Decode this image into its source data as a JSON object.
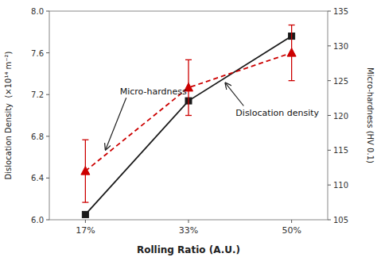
{
  "chart_data": {
    "type": "line",
    "x_label": "Rolling Ratio (A.U.)",
    "y_label": "Dislocation Density  (×10¹⁴ m⁻²)",
    "y2_label": "Micro-hardness (HV 0.1)",
    "categories": [
      "17%",
      "33%",
      "50%"
    ],
    "series": [
      {
        "color": "#1a1a1a",
        "marker": "square",
        "line_style": "solid",
        "values": [
          6.05,
          7.14,
          7.76
        ]
      },
      {
        "color": "#cc0000",
        "marker": "triangle",
        "line_style": "dashed",
        "axis": "y2",
        "values": [
          112.0,
          124.0,
          129.0
        ],
        "errors": [
          4.5,
          4.0,
          4.0
        ]
      }
    ],
    "ylim": [
      6.0,
      8.0
    ],
    "yticks": [
      {
        "value": 6.0,
        "label": "6.0"
      },
      6.4,
      6.8,
      7.2,
      7.6,
      {
        "value": 8.0,
        "label": "8.0"
      }
    ],
    "y2lim": [
      105,
      135
    ],
    "y2ticks": [
      105,
      110,
      115,
      120,
      125,
      130,
      135
    ],
    "annotations": [
      {
        "text": "Micro-hardness"
      },
      {
        "text": "Dislocation density"
      }
    ]
  }
}
